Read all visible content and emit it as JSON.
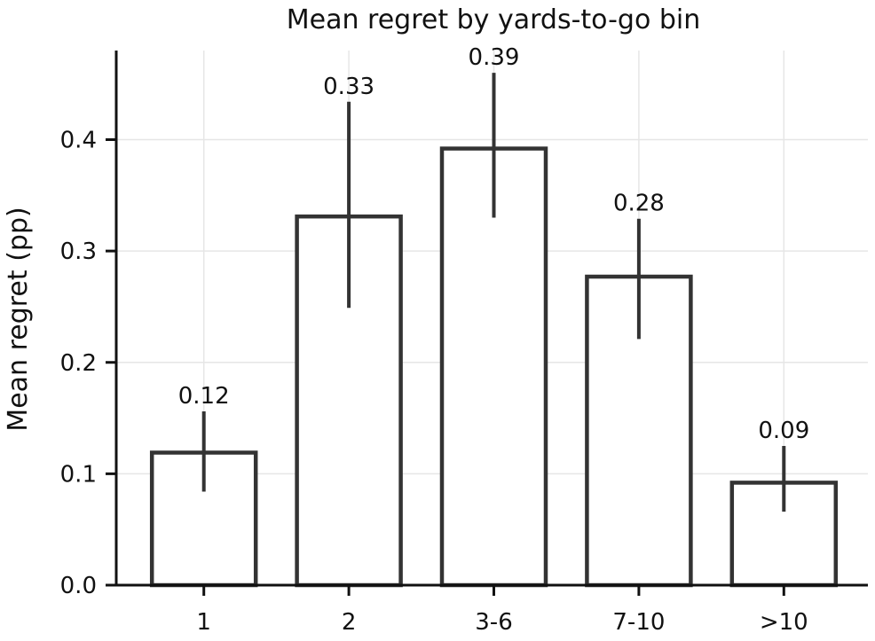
{
  "chart_data": {
    "type": "bar",
    "title": "Mean regret by yards-to-go bin",
    "xlabel": "",
    "ylabel": "Mean regret (pp)",
    "categories": [
      "1",
      "2",
      "3-6",
      "7-10",
      ">10"
    ],
    "values": [
      0.119,
      0.331,
      0.392,
      0.277,
      0.092
    ],
    "error_low": [
      0.084,
      0.249,
      0.33,
      0.221,
      0.066
    ],
    "error_high": [
      0.156,
      0.434,
      0.46,
      0.329,
      0.125
    ],
    "data_labels": [
      "0.12",
      "0.33",
      "0.39",
      "0.28",
      "0.09"
    ],
    "ylim": [
      0,
      0.48
    ],
    "yticks": [
      0.0,
      0.1,
      0.2,
      0.3,
      0.4
    ],
    "ytick_labels": [
      "0.0",
      "0.1",
      "0.2",
      "0.3",
      "0.4"
    ],
    "grid": true,
    "bar_fill": "#ffffff",
    "bar_edge_color": "#333333",
    "errorbar_color": "#333333",
    "grid_color": "#e6e6e6",
    "axis_color": "#111111"
  }
}
